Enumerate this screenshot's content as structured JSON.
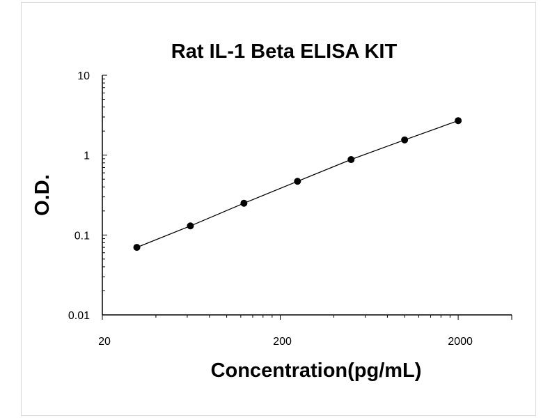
{
  "chart_data": {
    "type": "scatter",
    "title": "Rat IL-1 Beta ELISA KIT",
    "xlabel": "Concentration(pg/mL)",
    "ylabel": "O.D.",
    "xscale": "log",
    "yscale": "log",
    "xlim": [
      20,
      4000
    ],
    "ylim": [
      0.01,
      10
    ],
    "xticks": [
      {
        "value": 20,
        "label": "20"
      },
      {
        "value": 200,
        "label": "200"
      },
      {
        "value": 2000,
        "label": "2000"
      }
    ],
    "yticks": [
      {
        "value": 10,
        "label": "10"
      },
      {
        "value": 1,
        "label": "1"
      },
      {
        "value": 0.1,
        "label": "0.1"
      },
      {
        "value": 0.01,
        "label": "0.01"
      }
    ],
    "grid": false,
    "legend": "none",
    "line": true,
    "series": [
      {
        "x": [
          31.25,
          62.5,
          125,
          250,
          500,
          1000,
          2000
        ],
        "y": [
          0.07,
          0.13,
          0.25,
          0.47,
          0.88,
          1.55,
          2.7
        ]
      }
    ],
    "colors": {
      "marker": "#000000",
      "line": "#000000",
      "axis": "#000000"
    }
  }
}
